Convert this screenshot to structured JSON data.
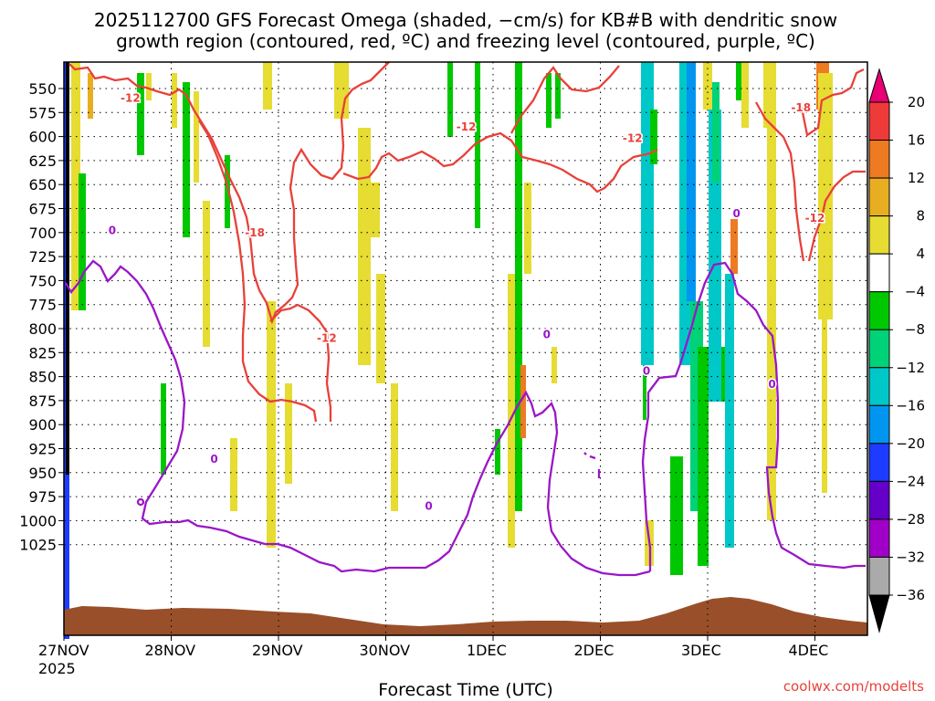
{
  "colors": {
    "red_contour": "#e8413a",
    "purple_contour": "#9a16c8",
    "ground": "#99502a",
    "gridline": "#000000"
  },
  "chart_data": {
    "type": "heatmap",
    "title_line1": "2025112700 GFS Forecast Omega (shaded, −cm/s) for KB#B with dendritic snow",
    "title_line2": "growth region (contoured, red, ºC) and freezing level (contoured, purple, ºC)",
    "xlabel": "Forecast Time (UTC)",
    "credit": "coolwx.com/modelts",
    "x_ticks": [
      "27NOV",
      "28NOV",
      "29NOV",
      "30NOV",
      "1DEC",
      "2DEC",
      "3DEC",
      "4DEC"
    ],
    "x_year": "2025",
    "y_ticks": [
      "550",
      "575",
      "600",
      "625",
      "650",
      "675",
      "700",
      "725",
      "750",
      "775",
      "800",
      "825",
      "850",
      "875",
      "900",
      "925",
      "950",
      "975",
      "1000",
      "1025"
    ],
    "y_values": [
      550,
      575,
      600,
      625,
      650,
      675,
      700,
      725,
      750,
      775,
      800,
      825,
      850,
      875,
      900,
      925,
      950,
      975,
      1000,
      1025
    ],
    "xlim_days": [
      0,
      7.5
    ],
    "colorbar": {
      "ticks": [
        "20",
        "16",
        "12",
        "8",
        "4",
        "−4",
        "−8",
        "−12",
        "−16",
        "−20",
        "−24",
        "−28",
        "−32",
        "−36"
      ],
      "colors": [
        "#e60073",
        "#ef3a3a",
        "#ee7a22",
        "#e8ae22",
        "#e6dc32",
        "#ffffff",
        "#00c800",
        "#00d278",
        "#00c8c8",
        "#0096f0",
        "#1e3cff",
        "#6400c8",
        "#a000c8",
        "#aaaaaa",
        "#000000"
      ]
    },
    "contour_labels": [
      {
        "text": "-12",
        "color": "red",
        "day": 0.62,
        "p": 560
      },
      {
        "text": "-12",
        "color": "red",
        "day": 3.75,
        "p": 590
      },
      {
        "text": "-12",
        "color": "red",
        "day": 5.3,
        "p": 602
      },
      {
        "text": "-18",
        "color": "red",
        "day": 1.78,
        "p": 700
      },
      {
        "text": "-12",
        "color": "red",
        "day": 2.45,
        "p": 810
      },
      {
        "text": "-18",
        "color": "red",
        "day": 6.87,
        "p": 570
      },
      {
        "text": "-12",
        "color": "red",
        "day": 7.0,
        "p": 685
      },
      {
        "text": "0",
        "color": "purple",
        "day": 0.45,
        "p": 698
      },
      {
        "text": "0",
        "color": "purple",
        "day": 1.4,
        "p": 936
      },
      {
        "text": "0",
        "color": "purple",
        "day": 3.4,
        "p": 985
      },
      {
        "text": "0",
        "color": "purple",
        "day": 4.5,
        "p": 806
      },
      {
        "text": "0",
        "color": "purple",
        "day": 5.43,
        "p": 844
      },
      {
        "text": "0",
        "color": "purple",
        "day": 6.27,
        "p": 680
      },
      {
        "text": "0",
        "color": "purple",
        "day": 6.6,
        "p": 858
      }
    ]
  }
}
